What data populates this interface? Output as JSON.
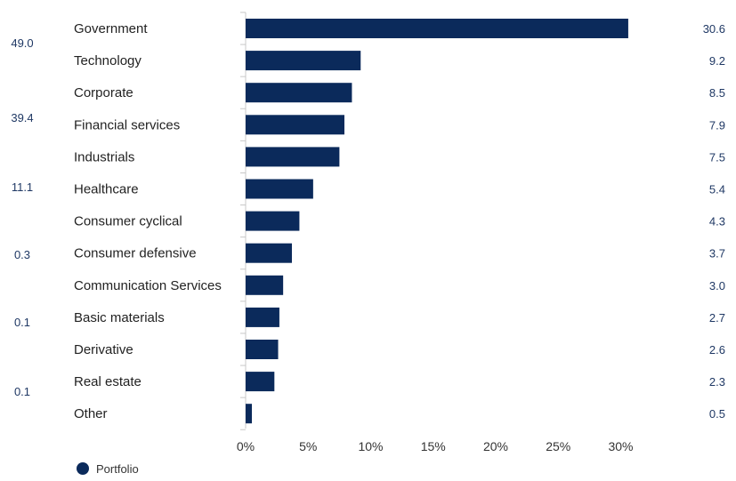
{
  "colors": {
    "bar": "#0b2a5b",
    "axis": "#c8c8c8",
    "value_text": "#1f3864"
  },
  "chart_data": {
    "type": "bar",
    "orientation": "horizontal",
    "categories": [
      "Government",
      "Technology",
      "Corporate",
      "Financial services",
      "Industrials",
      "Healthcare",
      "Consumer cyclical",
      "Consumer defensive",
      "Communication Services",
      "Basic materials",
      "Derivative",
      "Real estate",
      "Other"
    ],
    "series": [
      {
        "name": "Portfolio",
        "values": [
          30.6,
          9.2,
          8.5,
          7.9,
          7.5,
          5.4,
          4.3,
          3.7,
          3.0,
          2.7,
          2.6,
          2.3,
          0.5
        ]
      }
    ],
    "value_labels": [
      "30.6",
      "9.2",
      "8.5",
      "7.9",
      "7.5",
      "5.4",
      "4.3",
      "3.7",
      "3.0",
      "2.7",
      "2.6",
      "2.3",
      "0.5"
    ],
    "left_side_values": [
      "49.0",
      "39.4",
      "11.1",
      "0.3",
      "0.1",
      "0.1"
    ],
    "x_ticks": [
      "0%",
      "5%",
      "10%",
      "15%",
      "20%",
      "25%",
      "30%"
    ],
    "xlim": [
      0,
      35
    ],
    "title": "",
    "xlabel": "",
    "ylabel": "",
    "grid": false,
    "legend_position": "bottom-left"
  }
}
